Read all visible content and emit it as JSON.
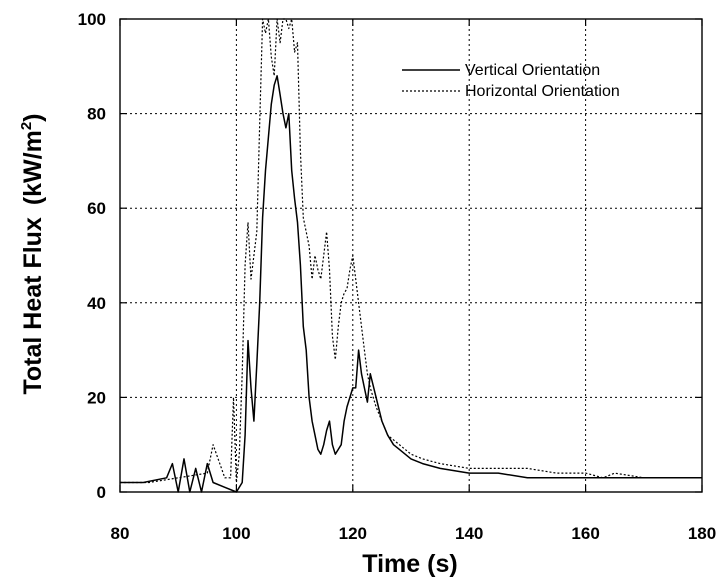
{
  "chart_data": {
    "type": "line",
    "title": "",
    "xlabel": "Time (s)",
    "ylabel": "Total Heat Flux",
    "ylabel_unit": "(kW/m",
    "ylabel_sup": "2",
    "ylabel_close": ")",
    "xlim": [
      80,
      180
    ],
    "ylim": [
      0,
      100
    ],
    "xticks": [
      80,
      100,
      120,
      140,
      160,
      180
    ],
    "yticks": [
      0,
      20,
      40,
      60,
      80,
      100
    ],
    "grid": true,
    "legend_position": "top-right",
    "series": [
      {
        "name": "Vertical Orientation",
        "style": "solid",
        "color": "#000000",
        "x": [
          80,
          84,
          88,
          89,
          90,
          91,
          92,
          93,
          94,
          95,
          96,
          98,
          100,
          101,
          101.5,
          102,
          102.5,
          103,
          103.5,
          104,
          104.5,
          105,
          105.5,
          106,
          106.5,
          107,
          107.5,
          108,
          108.5,
          109,
          109.5,
          110,
          110.5,
          111,
          111.5,
          112,
          112.5,
          113,
          113.5,
          114,
          114.5,
          115,
          115.5,
          116,
          116.5,
          117,
          117.5,
          118,
          118.5,
          119,
          119.5,
          120,
          120.5,
          121,
          121.5,
          122,
          122.5,
          123,
          124,
          125,
          126,
          127,
          128,
          130,
          132,
          135,
          140,
          145,
          150,
          155,
          160,
          165,
          170,
          175,
          180
        ],
        "y": [
          2,
          2,
          3,
          6,
          0,
          7,
          0,
          5,
          0,
          6,
          2,
          1,
          0,
          2,
          12,
          32,
          22,
          15,
          27,
          40,
          58,
          68,
          75,
          82,
          86,
          88,
          84,
          80,
          77,
          80,
          68,
          62,
          57,
          48,
          35,
          30,
          20,
          15,
          12,
          9,
          8,
          10,
          13,
          15,
          10,
          8,
          9,
          10,
          15,
          18,
          20,
          22,
          22,
          30,
          25,
          22,
          19,
          25,
          20,
          15,
          12,
          10,
          9,
          7,
          6,
          5,
          4,
          4,
          3,
          3,
          3,
          3,
          3,
          3,
          3
        ]
      },
      {
        "name": "Horizontal Orientation",
        "style": "dotted",
        "color": "#000000",
        "x": [
          80,
          85,
          90,
          95,
          96,
          98,
          99,
          99.5,
          100,
          100.5,
          101,
          101.5,
          102,
          102.5,
          103,
          103.5,
          104,
          104.5,
          105,
          105.5,
          106,
          106.5,
          107,
          107.5,
          108,
          108.5,
          109,
          109.5,
          110,
          110.5,
          111,
          111.5,
          112,
          112.5,
          113,
          113.5,
          114,
          114.5,
          115,
          115.5,
          116,
          116.5,
          117,
          117.5,
          118,
          118.5,
          119,
          119.5,
          120,
          120.5,
          121,
          121.5,
          122,
          122.5,
          123,
          124,
          125,
          126,
          128,
          130,
          132,
          135,
          140,
          145,
          150,
          155,
          160,
          163,
          165,
          170,
          175,
          180
        ],
        "y": [
          2,
          2,
          3,
          4,
          10,
          3,
          3,
          20,
          2,
          8,
          25,
          48,
          57,
          45,
          50,
          55,
          78,
          100,
          97,
          100,
          92,
          88,
          100,
          95,
          100,
          100,
          98,
          100,
          93,
          95,
          72,
          58,
          55,
          52,
          45,
          50,
          47,
          45,
          50,
          55,
          47,
          33,
          28,
          35,
          40,
          42,
          43,
          47,
          50,
          45,
          40,
          35,
          30,
          25,
          22,
          18,
          15,
          12,
          10,
          8,
          7,
          6,
          5,
          5,
          5,
          4,
          4,
          3,
          4,
          3,
          3,
          3
        ]
      }
    ]
  }
}
